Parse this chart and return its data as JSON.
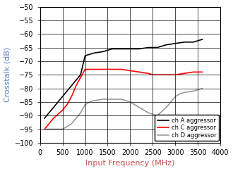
{
  "title": "",
  "xlabel": "Input Frequency (MHz)",
  "ylabel": "Crosstalk (dB)",
  "xlabel_color": "#c0504d",
  "ylabel_color": "#4f81bd",
  "xlim": [
    0,
    4000
  ],
  "ylim": [
    -100,
    -50
  ],
  "yticks": [
    -100,
    -95,
    -90,
    -85,
    -80,
    -75,
    -70,
    -65,
    -60,
    -55,
    -50
  ],
  "xticks": [
    0,
    500,
    1000,
    1500,
    2000,
    2500,
    3000,
    3500,
    4000
  ],
  "ch_A": {
    "x": [
      100,
      300,
      500,
      700,
      900,
      1000,
      1100,
      1200,
      1400,
      1600,
      1800,
      2000,
      2200,
      2400,
      2500,
      2600,
      2800,
      3000,
      3200,
      3400,
      3600
    ],
    "y": [
      -91,
      -87,
      -83,
      -79,
      -75,
      -68,
      -67.5,
      -67,
      -66.5,
      -65.5,
      -65.5,
      -65.5,
      -65.5,
      -65,
      -65,
      -65,
      -64,
      -63.5,
      -63,
      -63,
      -62
    ],
    "color": "#000000",
    "label": "ch A aggressor",
    "linewidth": 1.2
  },
  "ch_C": {
    "x": [
      100,
      300,
      500,
      600,
      700,
      800,
      900,
      1000,
      1100,
      1200,
      1400,
      1600,
      1800,
      2000,
      2200,
      2400,
      2500,
      2600,
      2800,
      3000,
      3200,
      3400,
      3600
    ],
    "y": [
      -95,
      -91,
      -88,
      -86,
      -83,
      -79,
      -76,
      -73,
      -73,
      -73,
      -73,
      -73,
      -73,
      -73.5,
      -74,
      -74.5,
      -75,
      -75,
      -75,
      -75,
      -74.5,
      -74,
      -74
    ],
    "color": "#ff0000",
    "label": "ch C aggressor",
    "linewidth": 1.2
  },
  "ch_D": {
    "x": [
      100,
      300,
      500,
      600,
      700,
      800,
      900,
      1000,
      1100,
      1200,
      1400,
      1600,
      1800,
      2000,
      2100,
      2200,
      2400,
      2600,
      2800,
      3000,
      3100,
      3200,
      3400,
      3600
    ],
    "y": [
      -95,
      -95,
      -95,
      -94,
      -93,
      -91,
      -89,
      -86,
      -85,
      -84.5,
      -84,
      -84,
      -84,
      -85,
      -86,
      -87,
      -89,
      -90,
      -87,
      -83,
      -82,
      -81.5,
      -81,
      -80
    ],
    "color": "#999999",
    "label": "ch D aggressor",
    "linewidth": 1.2
  },
  "legend_loc": "lower right",
  "grid_color": "#000000",
  "grid_linewidth": 0.5,
  "bg_color": "#ffffff",
  "tick_label_color": "#000000",
  "tick_fontsize": 7,
  "label_fontsize": 8
}
